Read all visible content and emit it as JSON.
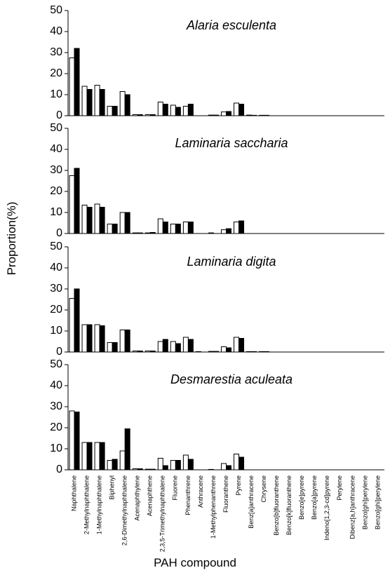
{
  "chart_data": {
    "type": "bar",
    "ylabel": "Proportion(%)",
    "xlabel": "PAH compound",
    "ylim": [
      0,
      50
    ],
    "yticks": [
      0,
      10,
      20,
      30,
      40,
      50
    ],
    "colors": [
      "#ffffff",
      "#000000"
    ],
    "categories": [
      "Naphthalene",
      "2-Methylnaphthalene",
      "1-Methylnaphthalene",
      "Biphenyl",
      "2,6-Dimethylnaphthalene",
      "Acenaphthylene",
      "Acenaphthene",
      "2,3,5-Trimethylnaphthalene",
      "Fluorene",
      "Phenanthrene",
      "Anthracene",
      "1-Methylphenanthrene",
      "Fluoranthene",
      "Pyrene",
      "Benz[a]anthracene",
      "Chrysene",
      "Benzo[b]fluoranthene",
      "Benzo[k]fluoranthene",
      "Benzo[e]pyrene",
      "Benzo[a]pyrene",
      "Indeno[1,2,3-cd]pyrene",
      "Perylene",
      "Dibenz[a,h]anthracene",
      "Benzo[ghi]perylene",
      "Benzo[ghi]perylene"
    ],
    "panels": [
      {
        "title": "Alaria esculenta",
        "series": [
          {
            "values": [
              27.5,
              14,
              14.5,
              4.5,
              11.5,
              0.5,
              0.5,
              6.5,
              5,
              4.5,
              0,
              0.3,
              1.8,
              6,
              0.3,
              0.2,
              0,
              0,
              0,
              0,
              0,
              0,
              0,
              0,
              0
            ]
          },
          {
            "values": [
              32,
              12.5,
              12.5,
              4.5,
              10,
              0.5,
              0.5,
              5.5,
              4,
              5.5,
              0,
              0.3,
              2,
              5.5,
              0.2,
              0.2,
              0,
              0,
              0,
              0,
              0,
              0,
              0,
              0,
              0
            ]
          }
        ]
      },
      {
        "title": "Laminaria saccharia",
        "series": [
          {
            "values": [
              27.5,
              13.5,
              14,
              4.5,
              10,
              0.3,
              0.3,
              7,
              4.5,
              5.5,
              0,
              0.3,
              1.8,
              5.5,
              0,
              0,
              0,
              0,
              0,
              0,
              0,
              0,
              0,
              0,
              0
            ]
          },
          {
            "values": [
              31,
              12.5,
              12.5,
              4.5,
              10,
              0.3,
              0.5,
              5.5,
              4.5,
              5.5,
              0,
              0,
              2.3,
              6,
              0,
              0,
              0,
              0,
              0,
              0,
              0,
              0,
              0,
              0,
              0
            ]
          }
        ]
      },
      {
        "title": "Laminaria digita",
        "series": [
          {
            "values": [
              25.5,
              13,
              13,
              4.5,
              10.5,
              0.5,
              0.5,
              5,
              5,
              7,
              0.2,
              0.3,
              2.5,
              7,
              0.2,
              0.2,
              0,
              0,
              0,
              0,
              0,
              0,
              0,
              0,
              0
            ]
          },
          {
            "values": [
              30,
              13,
              12.5,
              4.5,
              10.5,
              0.5,
              0.5,
              6,
              4,
              6,
              0,
              0.3,
              2,
              6.5,
              0.2,
              0.2,
              0,
              0,
              0,
              0,
              0,
              0,
              0,
              0,
              0
            ]
          }
        ]
      },
      {
        "title": "Desmarestia aculeata",
        "series": [
          {
            "values": [
              28,
              13,
              13,
              4.5,
              9,
              0.5,
              0.3,
              5.5,
              4.5,
              7,
              0,
              0.2,
              3,
              7.5,
              0,
              0,
              0,
              0,
              0,
              0,
              0,
              0,
              0,
              0,
              0
            ]
          },
          {
            "values": [
              27.5,
              13,
              13,
              5,
              19.5,
              0.5,
              0.3,
              2,
              4.5,
              5,
              0,
              0,
              2,
              6,
              0,
              0,
              0,
              0,
              0,
              0,
              0,
              0,
              0,
              0,
              0
            ]
          }
        ]
      }
    ]
  }
}
